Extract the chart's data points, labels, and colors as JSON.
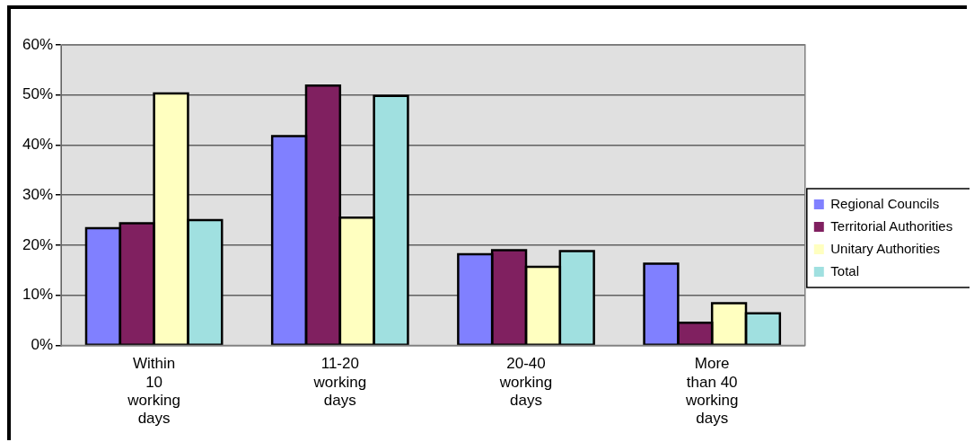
{
  "chart_data": {
    "type": "bar",
    "categories": [
      "Within 10 working days",
      "11-20 working days",
      "20-40 working days",
      "More than 40 working days"
    ],
    "series": [
      {
        "name": "Regional Councils",
        "color": "#8080ff",
        "values": [
          23.4,
          41.8,
          18.2,
          16.3
        ]
      },
      {
        "name": "Territorial Authorities",
        "color": "#802060",
        "values": [
          24.4,
          51.9,
          19.0,
          4.5
        ]
      },
      {
        "name": "Unitary Authorities",
        "color": "#ffffc0",
        "values": [
          50.3,
          25.5,
          15.7,
          8.4
        ]
      },
      {
        "name": "Total",
        "color": "#a0e0e0",
        "values": [
          25.0,
          49.8,
          18.8,
          6.4
        ]
      }
    ],
    "ylim": [
      0,
      60
    ],
    "yticks": [
      {
        "value": 0,
        "label": "0%"
      },
      {
        "value": 10,
        "label": "10%"
      },
      {
        "value": 20,
        "label": "20%"
      },
      {
        "value": 30,
        "label": "30%"
      },
      {
        "value": 40,
        "label": "40%"
      },
      {
        "value": 50,
        "label": "50%"
      },
      {
        "value": 60,
        "label": "60%"
      }
    ],
    "grid": "y",
    "legend": "right"
  }
}
